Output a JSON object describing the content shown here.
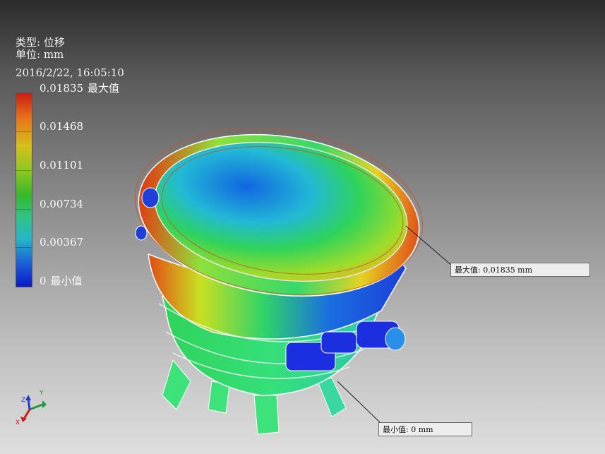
{
  "info": {
    "type_line": "类型: 位移",
    "unit_line": "单位: mm",
    "timestamp": "2016/2/22, 16:05:10"
  },
  "legend": {
    "max_value": "0.01835",
    "max_tag": "最大值",
    "v4": "0.01468",
    "v3": "0.01101",
    "v2": "0.00734",
    "v1": "0.00367",
    "min_value": "0",
    "min_tag": "最小值",
    "gradient_colors": [
      "#c81e10",
      "#e8741a",
      "#d6bf1a",
      "#8ec81e",
      "#36b82c",
      "#2fc37f",
      "#27b7c8",
      "#1b60d6",
      "#0a18c6"
    ]
  },
  "callouts": {
    "max": "最大值: 0.01835 mm",
    "min": "最小值: 0 mm"
  },
  "axis_triad": {
    "x": "X",
    "y": "Y",
    "z": "Z"
  }
}
